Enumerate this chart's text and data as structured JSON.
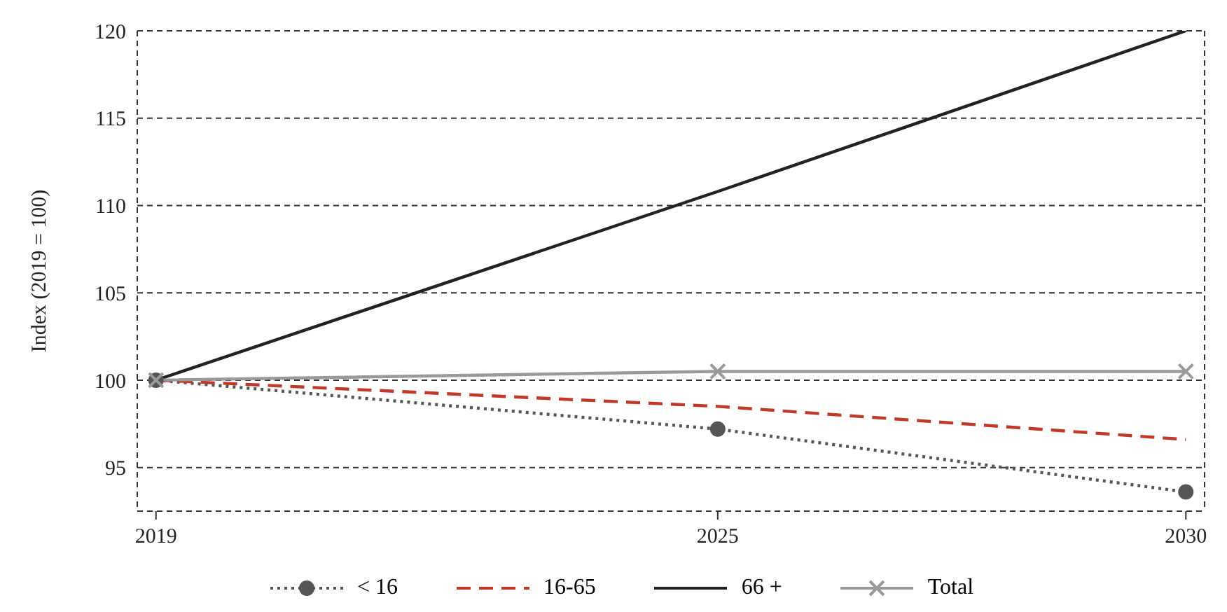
{
  "chart_data": {
    "type": "line",
    "ylabel": "Index (2019 = 100)",
    "x": [
      2019,
      2025,
      2030
    ],
    "xlim": [
      2018.8,
      2030.2
    ],
    "xticks": [
      2019,
      2025,
      2030
    ],
    "ylim": [
      92.5,
      120
    ],
    "yticks": [
      95,
      100,
      105,
      110,
      115,
      120
    ],
    "grid": "y",
    "legend": "bottom",
    "series": [
      {
        "name": "< 16",
        "color": "#555555",
        "values": [
          100,
          97.2,
          93.6
        ],
        "marker": "circle",
        "line_style": "dotted"
      },
      {
        "name": "16-65",
        "color": "#c0392b",
        "values": [
          100,
          98.5,
          96.6
        ],
        "marker": "none",
        "line_style": "dashed"
      },
      {
        "name": "66 +",
        "color": "#222222",
        "values": [
          100,
          110.8,
          120
        ],
        "marker": "none",
        "line_style": "solid"
      },
      {
        "name": "Total",
        "color": "#999999",
        "values": [
          100,
          100.5,
          100.5
        ],
        "marker": "cross",
        "line_style": "solid"
      }
    ]
  }
}
